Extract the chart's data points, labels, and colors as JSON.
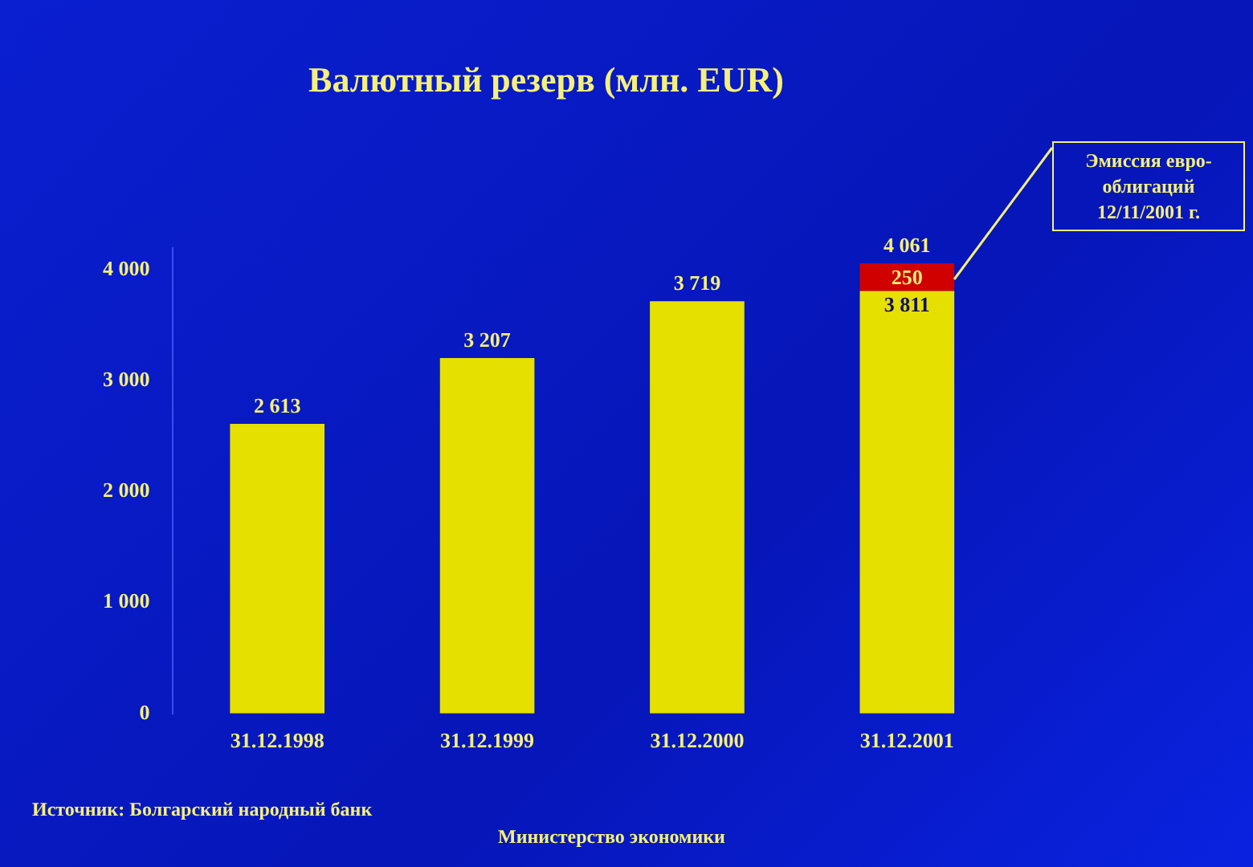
{
  "chart_data": {
    "type": "bar",
    "title": "Валютный резерв (млн. EUR)",
    "stacked": true,
    "categories": [
      "31.12.1998",
      "31.12.1999",
      "31.12.2000",
      "31.12.2001"
    ],
    "series": [
      {
        "color": "#e6e000",
        "values": [
          2613,
          3207,
          3719,
          3811
        ],
        "value_labels": [
          "2 613",
          "3 207",
          "3 719",
          "3 811"
        ]
      },
      {
        "color": "#d00000",
        "values": [
          null,
          null,
          null,
          250
        ],
        "value_labels": [
          null,
          null,
          null,
          "250"
        ]
      }
    ],
    "totals": [
      null,
      null,
      null,
      "4 061"
    ],
    "ylim": [
      0,
      4200
    ],
    "yticks": [
      0,
      {
        "value": 1000,
        "label": "1 000"
      },
      {
        "value": 2000,
        "label": "2 000"
      },
      {
        "value": 3000,
        "label": "3 000"
      },
      {
        "value": 4000,
        "label": "4 000"
      }
    ],
    "grid": false,
    "legend": false,
    "annotations": [
      "Эмиссия евро-облигаций 12/11/2001 г.",
      "Источник: Болгарский народный банк",
      "Министерство экономики"
    ]
  }
}
